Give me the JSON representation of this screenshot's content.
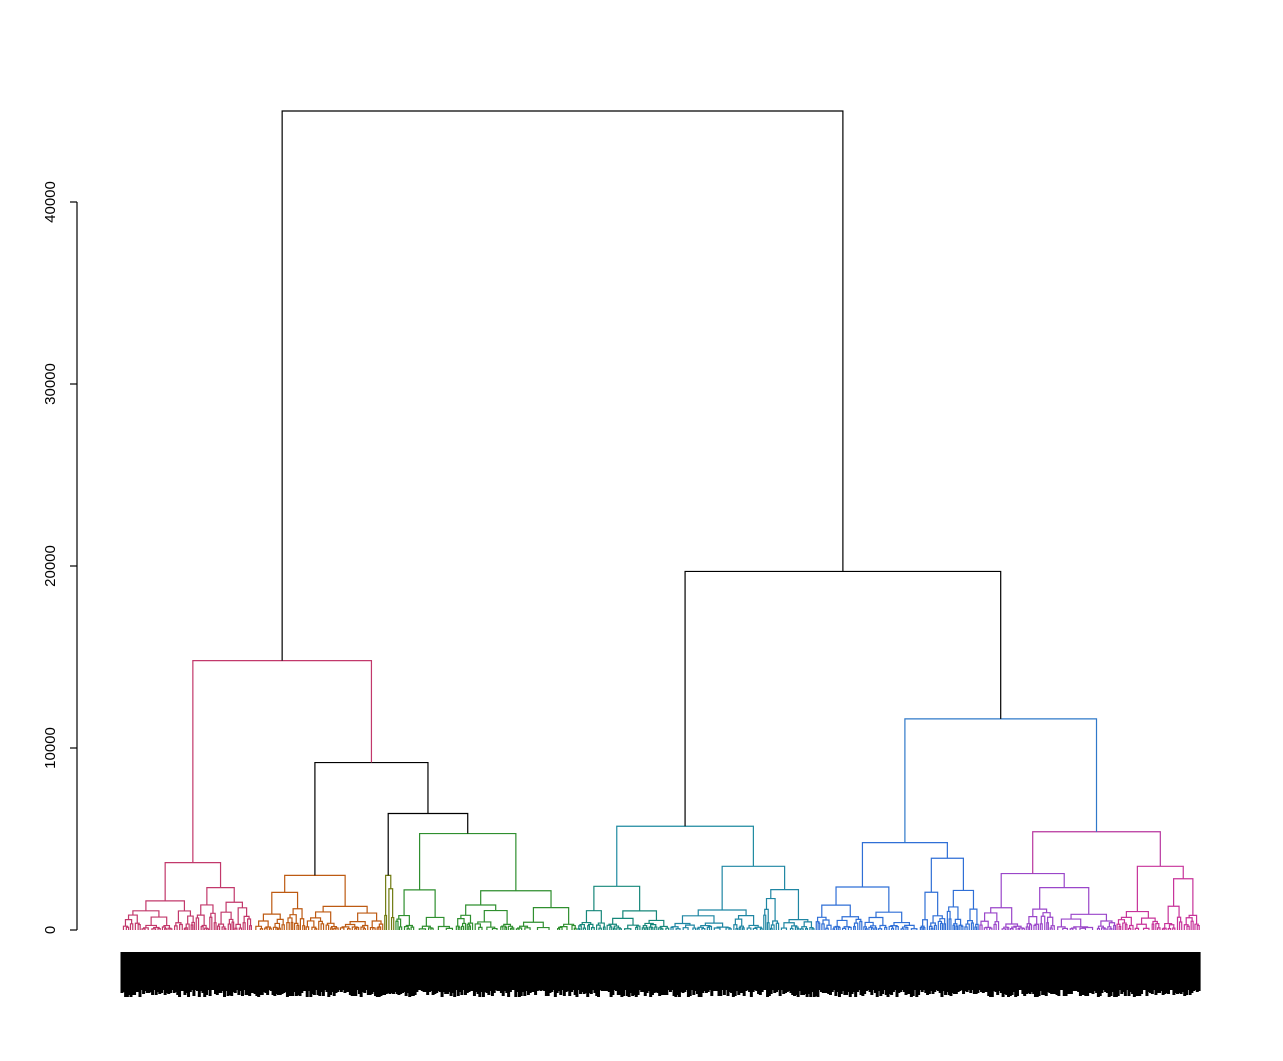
{
  "chart_data": {
    "type": "dendrogram",
    "title": "",
    "xlabel": "",
    "ylabel": "",
    "ylim": [
      0,
      45000
    ],
    "yticks": [
      0,
      10000,
      20000,
      30000,
      40000
    ],
    "ytick_labels": [
      "0",
      "10000",
      "20000",
      "30000",
      "40000"
    ],
    "n_leaves_estimate": 1200,
    "root_height": 45000,
    "clusters": [
      {
        "color": "#c2386b",
        "range": [
          0,
          0.121
        ],
        "height": 3700
      },
      {
        "color": "#bd5a12",
        "range": [
          0.121,
          0.243
        ],
        "height": 3000
      },
      {
        "color": "#6f7a10",
        "range": [
          0.243,
          0.253
        ],
        "height": 3000
      },
      {
        "color": "#2f8f2f",
        "range": [
          0.253,
          0.422
        ],
        "height": 5300
      },
      {
        "color": "#16877a",
        "range": [
          0.422,
          0.508
        ],
        "height": 2400
      },
      {
        "color": "#1f86a3",
        "range": [
          0.508,
          0.643
        ],
        "height": 3500
      },
      {
        "color": "#2f6fd6",
        "range": [
          0.643,
          0.795
        ],
        "height": 4800
      },
      {
        "color": "#9a46c9",
        "range": [
          0.795,
          0.922
        ],
        "height": 3100
      },
      {
        "color": "#c7339a",
        "range": [
          0.922,
          1.0
        ],
        "height": 3500
      }
    ],
    "merges": [
      {
        "left": "c1",
        "right": "c2",
        "height": 6400,
        "color": "#000000"
      },
      {
        "left": "c0",
        "right": "m0",
        "height": 9200,
        "color": "#000000"
      },
      {
        "left": "c_red",
        "right": "m1",
        "height": 14800,
        "color": "#000000"
      },
      {
        "left": "c4",
        "right": "c5",
        "height": 5700,
        "color": "#1f8aa0"
      },
      {
        "left": "c7",
        "right": "c8",
        "height": 5400,
        "color": "#b8369f"
      },
      {
        "left": "c6",
        "right": "m4",
        "height": 11600,
        "color": "#000000"
      },
      {
        "left": "m3",
        "right": "m5",
        "height": 19700,
        "color": "#000000"
      },
      {
        "left": "m2",
        "right": "m6",
        "height": 45000,
        "color": "#000000"
      }
    ]
  }
}
